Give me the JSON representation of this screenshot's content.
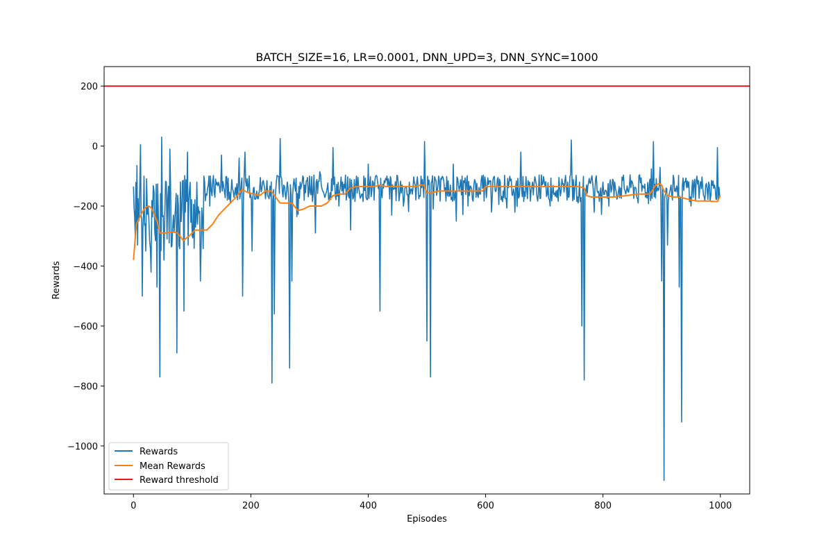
{
  "chart_data": {
    "type": "line",
    "title": "BATCH_SIZE=16, LR=0.0001, DNN_UPD=3, DNN_SYNC=1000",
    "xlabel": "Episodes",
    "ylabel": "Rewards",
    "xlim": [
      -50,
      1050
    ],
    "ylim": [
      -1160,
      265
    ],
    "xticks": [
      0,
      200,
      400,
      600,
      800,
      1000
    ],
    "xtick_labels": [
      "0",
      "200",
      "400",
      "600",
      "800",
      "1000"
    ],
    "yticks": [
      200,
      0,
      -200,
      -400,
      -600,
      -800,
      -1000
    ],
    "ytick_labels": [
      "200",
      "0",
      "−200",
      "−400",
      "−600",
      "−800",
      "−1000"
    ],
    "grid": false,
    "legend_placement": "lower-left",
    "series": [
      {
        "name": "Rewards",
        "color": "#1f77b4",
        "style": "noisy",
        "x": [
          0,
          3,
          6,
          9,
          12,
          15,
          18,
          21,
          25,
          30,
          35,
          40,
          45,
          48,
          52,
          56,
          62,
          68,
          74,
          80,
          86,
          92,
          100,
          108,
          114,
          120,
          130,
          140,
          150,
          160,
          170,
          180,
          186,
          190,
          196,
          202,
          210,
          220,
          230,
          236,
          240,
          246,
          250,
          256,
          262,
          266,
          270,
          276,
          284,
          292,
          300,
          310,
          320,
          330,
          340,
          350,
          360,
          370,
          380,
          390,
          400,
          410,
          416,
          420,
          426,
          432,
          440,
          450,
          460,
          470,
          480,
          490,
          496,
          500,
          506,
          512,
          520,
          530,
          540,
          550,
          560,
          570,
          580,
          590,
          600,
          610,
          620,
          630,
          640,
          650,
          660,
          670,
          680,
          690,
          700,
          710,
          720,
          730,
          740,
          746,
          752,
          760,
          764,
          768,
          772,
          780,
          790,
          800,
          810,
          820,
          830,
          840,
          850,
          860,
          870,
          880,
          886,
          892,
          896,
          900,
          904,
          910,
          916,
          922,
          930,
          934,
          940,
          950,
          960,
          970,
          980,
          990,
          995,
          999
        ],
        "values": [
          -135,
          -300,
          -65,
          -250,
          5,
          -500,
          -100,
          -350,
          -200,
          -420,
          -150,
          -470,
          -770,
          30,
          -380,
          -120,
          -10,
          -230,
          -690,
          -120,
          -550,
          -20,
          -300,
          -120,
          -450,
          -100,
          -200,
          -110,
          -30,
          -180,
          -150,
          -40,
          -500,
          -20,
          -130,
          -350,
          -150,
          -120,
          -170,
          -790,
          -560,
          -100,
          25,
          -130,
          -120,
          -740,
          -450,
          -150,
          -120,
          -130,
          -100,
          -290,
          -130,
          -140,
          -5,
          -200,
          -140,
          -280,
          -100,
          -160,
          -60,
          -180,
          -120,
          -550,
          -140,
          -100,
          -230,
          -100,
          -200,
          -120,
          -130,
          -100,
          15,
          -650,
          -770,
          -140,
          -100,
          -150,
          -130,
          -250,
          -100,
          -200,
          -130,
          -160,
          -120,
          -220,
          -110,
          -150,
          -120,
          -220,
          -20,
          -140,
          -120,
          -160,
          -120,
          -200,
          -150,
          -110,
          -120,
          20,
          -140,
          -120,
          -600,
          -780,
          -130,
          -110,
          -150,
          -120,
          -200,
          -120,
          -140,
          -150,
          -120,
          -190,
          -140,
          -110,
          15,
          -150,
          -130,
          -450,
          -1115,
          -330,
          -130,
          -150,
          -470,
          -920,
          -120,
          -200,
          -100,
          -140,
          -120,
          -130,
          -5,
          -170
        ]
      },
      {
        "name": "Mean Rewards",
        "color": "#ff7f0e",
        "style": "smooth",
        "x": [
          0,
          5,
          10,
          15,
          20,
          25,
          30,
          35,
          40,
          45,
          55,
          65,
          75,
          85,
          95,
          105,
          115,
          125,
          135,
          145,
          155,
          165,
          175,
          185,
          195,
          205,
          215,
          225,
          235,
          240,
          250,
          260,
          270,
          280,
          290,
          300,
          310,
          320,
          330,
          340,
          350,
          360,
          370,
          380,
          390,
          400,
          410,
          420,
          430,
          440,
          450,
          460,
          470,
          480,
          490,
          495,
          500,
          510,
          520,
          530,
          540,
          550,
          560,
          570,
          580,
          590,
          595,
          600,
          610,
          620,
          640,
          660,
          680,
          700,
          720,
          740,
          760,
          768,
          772,
          780,
          800,
          820,
          840,
          860,
          870,
          880,
          890,
          896,
          900,
          904,
          910,
          920,
          930,
          940,
          950,
          960,
          970,
          980,
          990,
          995,
          1000
        ],
        "values": [
          -380,
          -260,
          -240,
          -220,
          -205,
          -200,
          -205,
          -225,
          -250,
          -290,
          -290,
          -285,
          -290,
          -315,
          -300,
          -280,
          -280,
          -280,
          -260,
          -230,
          -210,
          -190,
          -170,
          -145,
          -155,
          -160,
          -165,
          -150,
          -150,
          -165,
          -190,
          -190,
          -190,
          -215,
          -210,
          -200,
          -200,
          -200,
          -190,
          -165,
          -160,
          -160,
          -140,
          -135,
          -135,
          -135,
          -135,
          -130,
          -135,
          -135,
          -135,
          -135,
          -135,
          -135,
          -130,
          -130,
          -155,
          -155,
          -150,
          -150,
          -150,
          -150,
          -150,
          -150,
          -150,
          -150,
          -150,
          -135,
          -135,
          -135,
          -135,
          -135,
          -135,
          -135,
          -135,
          -135,
          -135,
          -140,
          -165,
          -170,
          -170,
          -170,
          -165,
          -160,
          -160,
          -160,
          -130,
          -125,
          -130,
          -150,
          -165,
          -170,
          -170,
          -175,
          -180,
          -183,
          -183,
          -183,
          -185,
          -185,
          -165
        ]
      },
      {
        "name": "Reward threshold",
        "color": "#e41a1c",
        "style": "hline",
        "value": 200
      }
    ]
  }
}
